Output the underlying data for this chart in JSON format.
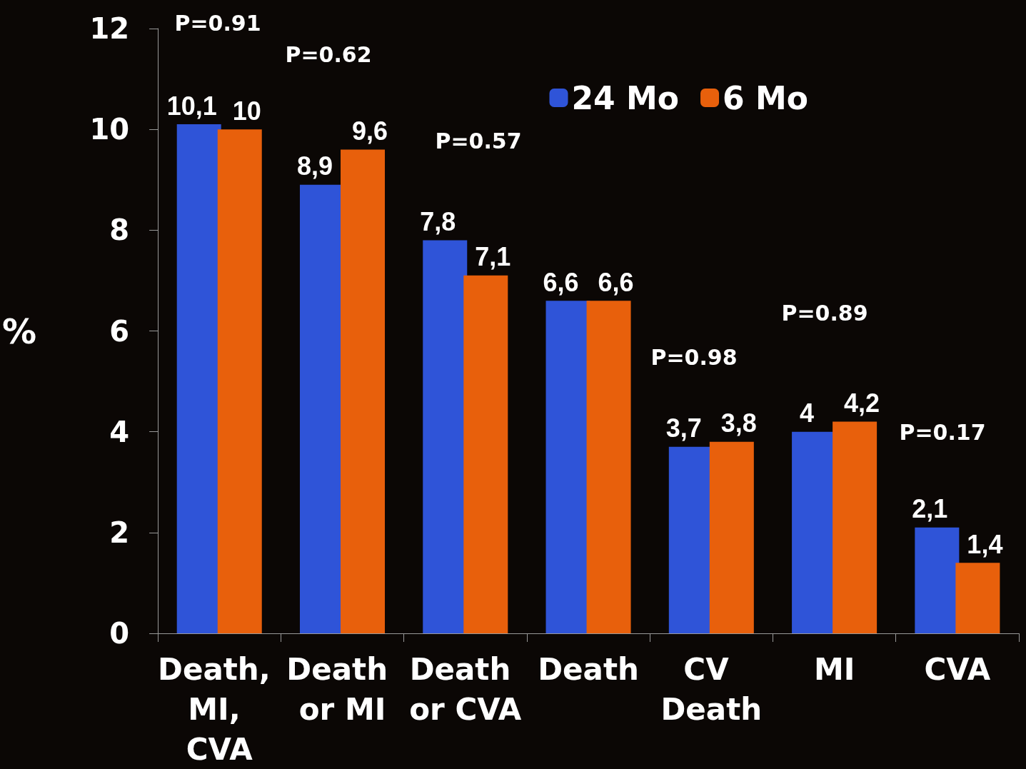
{
  "chart_data": {
    "type": "bar",
    "ylabel": "%",
    "categories": [
      "Death, MI, CVA",
      "Death or MI",
      "Death or CVA",
      "Death",
      "CV Death",
      "MI",
      "CVA"
    ],
    "series": [
      {
        "name": "24 Mo",
        "color": "#2f54d8",
        "values": [
          10.1,
          8.9,
          7.8,
          6.6,
          3.7,
          4,
          2.1
        ],
        "value_labels": [
          "10,1",
          "8,9",
          "7,8",
          "6,6",
          "3,7",
          "4",
          "2,1"
        ]
      },
      {
        "name": "6 Mo",
        "color": "#e8600c",
        "values": [
          10,
          9.6,
          7.1,
          6.6,
          3.8,
          4.2,
          1.4
        ],
        "value_labels": [
          "10",
          "9,6",
          "7,1",
          "6,6",
          "3,8",
          "4,2",
          "1,4"
        ]
      }
    ],
    "ylim": [
      0,
      12
    ],
    "yticks": [
      0,
      2,
      4,
      6,
      8,
      10,
      12
    ],
    "grid": false,
    "legend": "top right",
    "annotations": [
      "P=0.91",
      "P=0.62",
      "P=0.57",
      "P=0.98",
      "P=0.89",
      "P=0.17"
    ]
  }
}
